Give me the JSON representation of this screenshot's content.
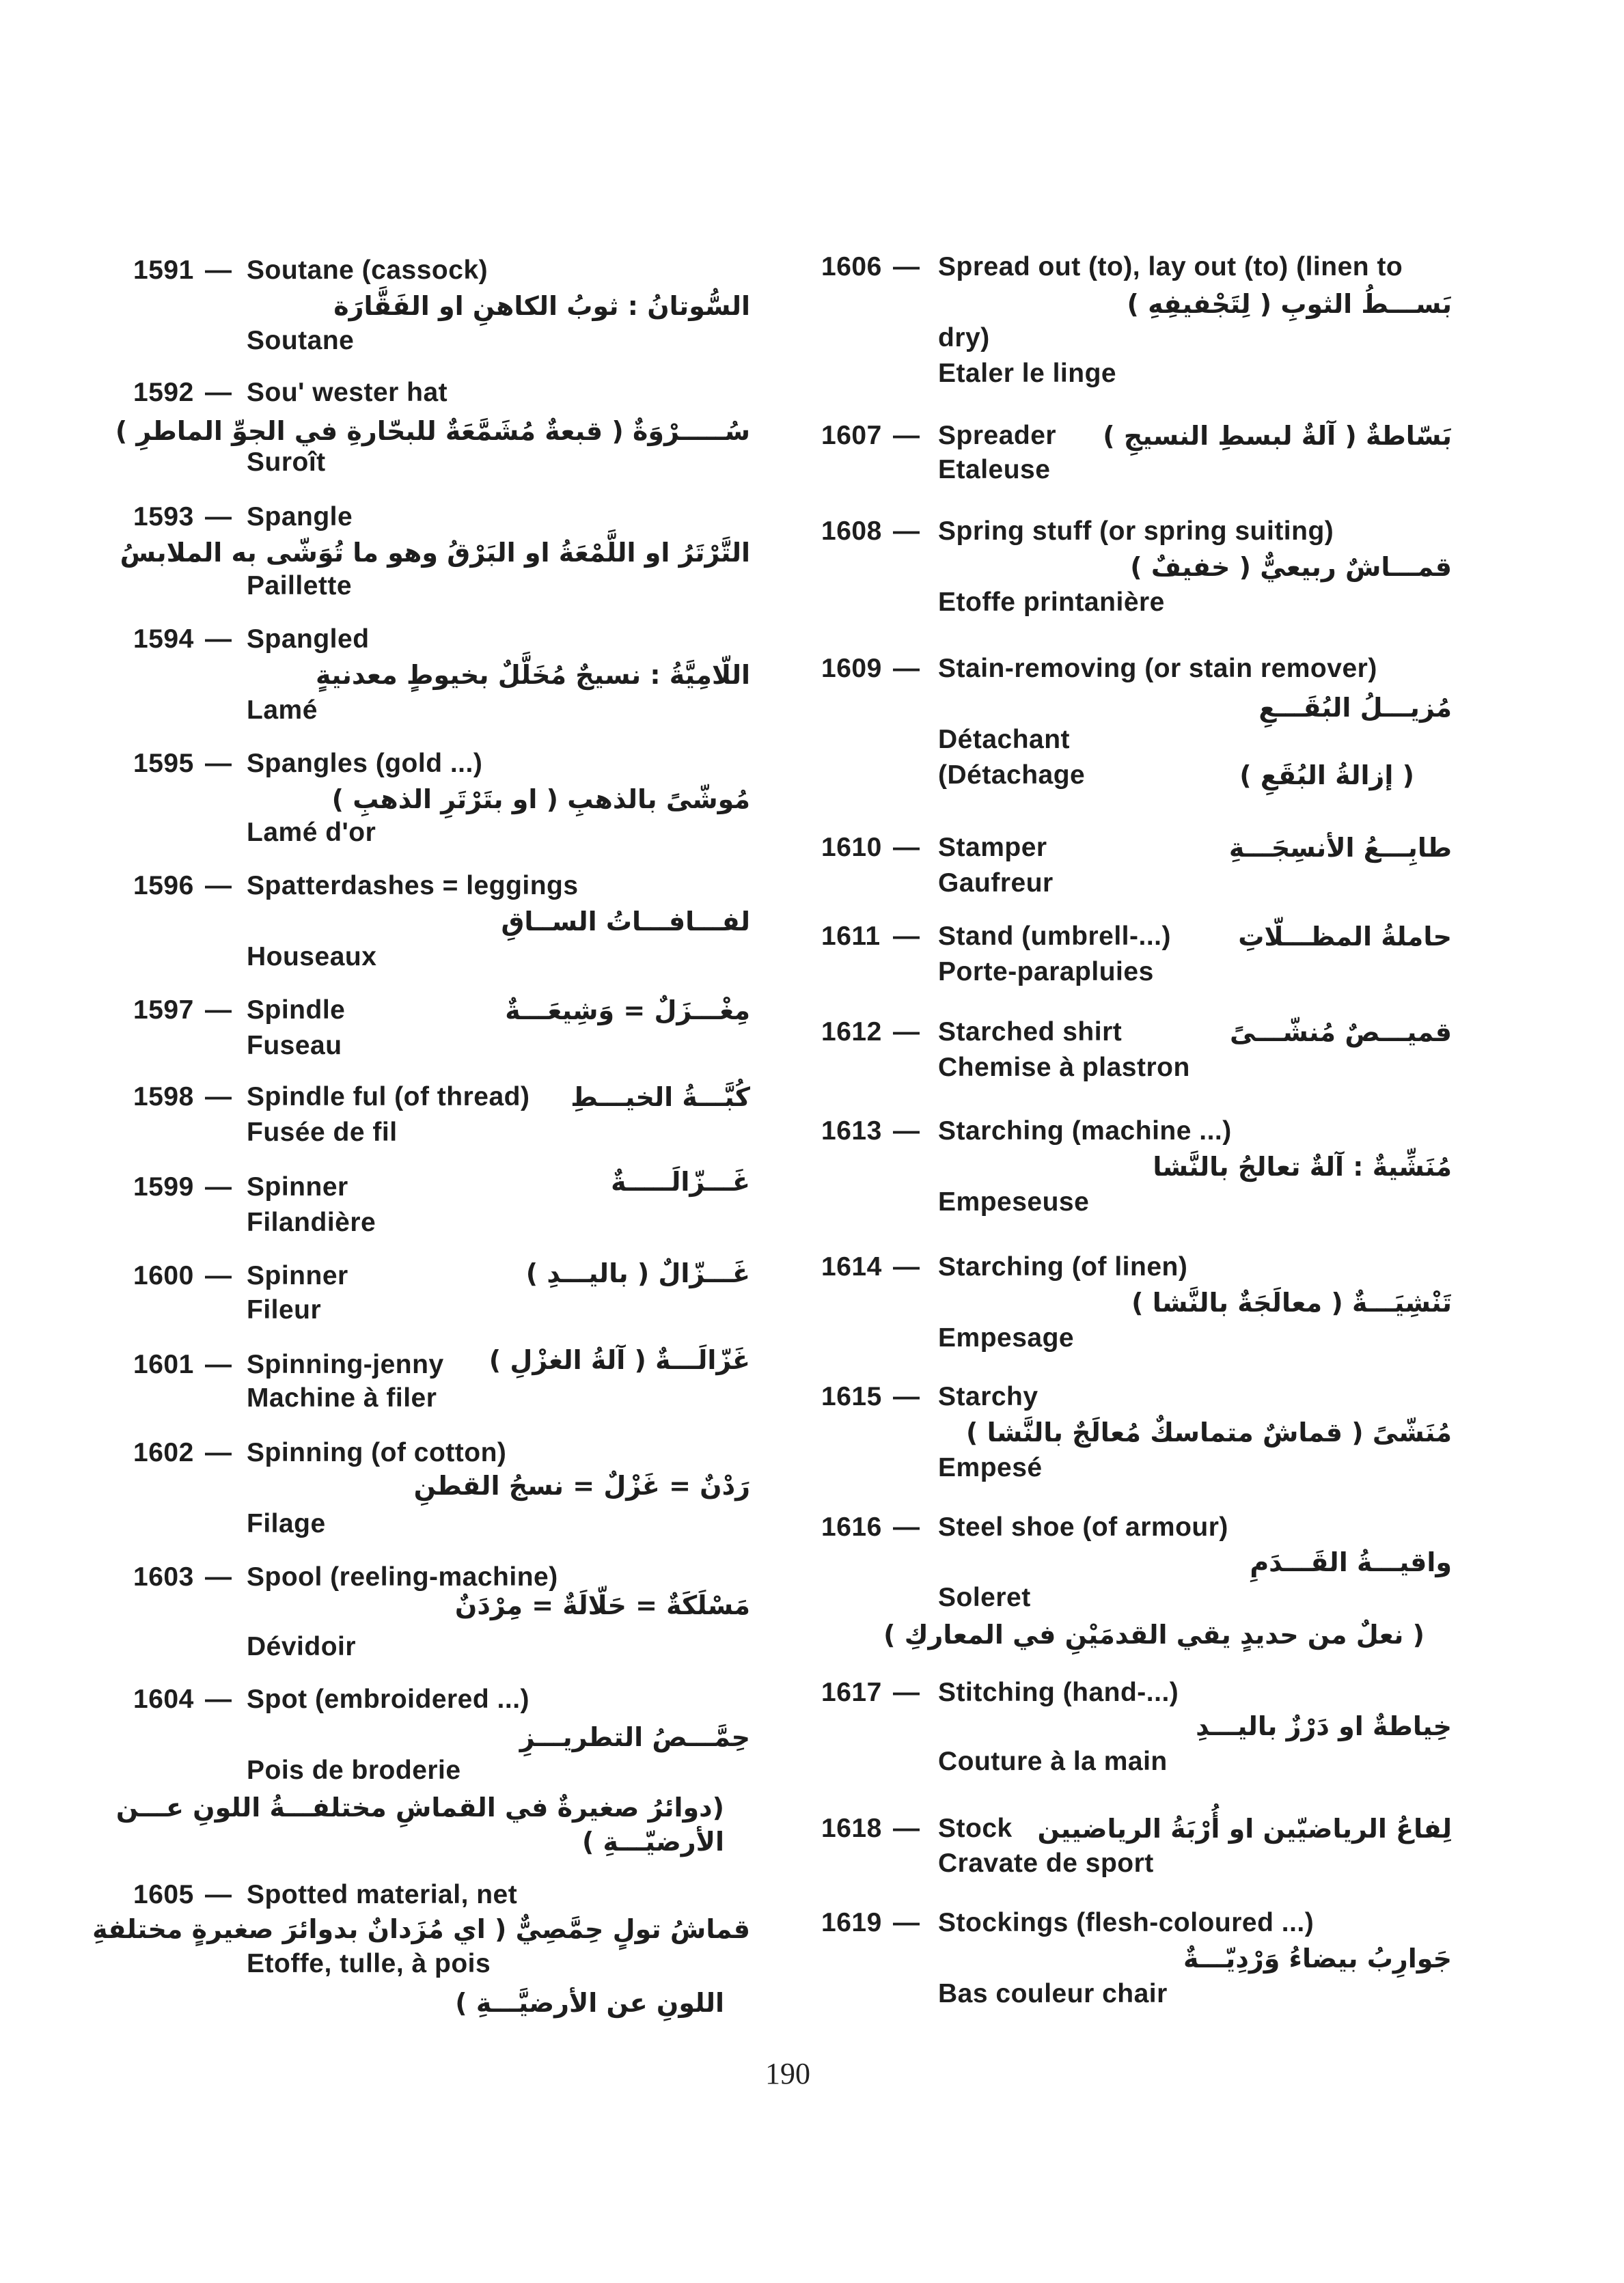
{
  "page_number": "190",
  "separator": "—",
  "left_column": [
    {
      "number": "1591",
      "headword": "Soutane (cassock)",
      "arabic": "السُّوتانُ : ثوبُ الكاهنِ او الفَقَّارَة",
      "french": "Soutane"
    },
    {
      "number": "1592",
      "headword": "Sou' wester hat",
      "arabic": "سُـــــرْوَةٌ ( قبعةٌ مُشَمَّعَةٌ للبحّارةِ في الجوِّ الماطرِ )",
      "french": "Suroît"
    },
    {
      "number": "1593",
      "headword": "Spangle",
      "arabic": "التَّرْتَرُ او اللَّمْعَةُ او البَرْقُ وهو ما تُوَشّى به الملابسُ",
      "french": "Paillette"
    },
    {
      "number": "1594",
      "headword": "Spangled",
      "arabic": "اللّامِيَّةُ : نسيجٌ مُخَلَّلٌ بخيوطٍ معدنيةٍ",
      "french": "Lamé"
    },
    {
      "number": "1595",
      "headword": "Spangles (gold ...)",
      "arabic": "مُوشّىً بالذهبِ ( او بتَرْتَرِ الذهبِ )",
      "french": "Lamé d'or"
    },
    {
      "number": "1596",
      "headword": "Spatterdashes = leggings",
      "arabic": "لفـــافـــاتُ الســاقِ",
      "french": "Houseaux"
    },
    {
      "number": "1597",
      "headword": "Spindle",
      "arabic": "مِغْـــزَلٌ = وَشِيعَـــةٌ",
      "french": "Fuseau"
    },
    {
      "number": "1598",
      "headword": "Spindle ful (of thread)",
      "arabic": "كُبَّـــةُ الخيـــطِ",
      "french": "Fusée de fil"
    },
    {
      "number": "1599",
      "headword": "Spinner",
      "arabic": "غَـــزّالَـــــةٌ",
      "french": "Filandière"
    },
    {
      "number": "1600",
      "headword": "Spinner",
      "arabic": "غَـــزّالٌ ( باليـــدِ )",
      "french": "Fileur"
    },
    {
      "number": "1601",
      "headword": "Spinning-jenny",
      "arabic": "غَزّالَـــةٌ ( آلةُ الغزْلِ )",
      "french": "Machine à filer"
    },
    {
      "number": "1602",
      "headword": "Spinning (of cotton)",
      "arabic": "رَدْنٌ = غَزْلٌ = نسجُ القطنِ",
      "french": "Filage"
    },
    {
      "number": "1603",
      "headword": "Spool (reeling-machine)",
      "arabic": "مَسْلَكَةٌ = حَلّالَةٌ = مِرْدَنٌ",
      "french": "Dévidoir"
    },
    {
      "number": "1604",
      "headword": "Spot (embroidered ...)",
      "arabic": "حِمَّـــصُ التطريـــزِ",
      "french": "Pois de broderie",
      "note_1": "(دوائرُ صغيرةٌ في القماشِ مختلفـــةُ اللونِ عـــن",
      "note_2": "الأرضيّـــةِ )"
    },
    {
      "number": "1605",
      "headword": "Spotted material, net",
      "arabic": "قماشُ تولٍ حِمَّصِيٌّ ( اي مُزَدانٌ بدوائرَ صغيرةٍ مختلفةِ",
      "french": "Etoffe, tulle, à pois",
      "note_1": "اللونِ عن الأرضيَّـــةِ )"
    }
  ],
  "right_column": [
    {
      "number": "1606",
      "headword": "Spread out (to), lay out (to) (linen to",
      "headword_cont": "dry)",
      "arabic": "بَســـطُ الثوبِ ( لِتَجْفيفِهِ )",
      "french": "Etaler le linge"
    },
    {
      "number": "1607",
      "headword": "Spreader",
      "arabic": "بَسّاطةٌ ( آلةٌ لبسطِ النسيجِ )",
      "french": "Etaleuse"
    },
    {
      "number": "1608",
      "headword": "Spring stuff (or spring suiting)",
      "arabic": "قمـــاشٌ ربيعيٌّ ( خفيفٌ )",
      "french": "Etoffe printanière"
    },
    {
      "number": "1609",
      "headword": "Stain-removing (or stain remover)",
      "arabic": "مُزيـــلُ البُقَـــعِ",
      "french": "Détachant",
      "french_2": "(Détachage",
      "arabic_2": "( إزالةُ البُقَعِ )"
    },
    {
      "number": "1610",
      "headword": "Stamper",
      "arabic": "طابِـــعُ الأنسِجَـــةِ",
      "french": "Gaufreur"
    },
    {
      "number": "1611",
      "headword": "Stand (umbrell-...)",
      "arabic": "حاملةُ المظـــلّاتِ",
      "french": "Porte-parapluies"
    },
    {
      "number": "1612",
      "headword": "Starched shirt",
      "arabic": "قميـــصٌ مُنشّـــىً",
      "french": "Chemise à plastron"
    },
    {
      "number": "1613",
      "headword": "Starching (machine ...)",
      "arabic": "مُنَشِّيةٌ : آلةٌ تعالجُ بالنَّشا",
      "french": "Empeseuse"
    },
    {
      "number": "1614",
      "headword": "Starching (of linen)",
      "arabic": "تَنْشِيَـــةٌ ( معالَجَةٌ بالنَّشا )",
      "french": "Empesage"
    },
    {
      "number": "1615",
      "headword": "Starchy",
      "arabic": "مُنَشّىً ( قماشٌ متماسكٌ مُعالَجٌ بالنَّشا )",
      "french": "Empesé"
    },
    {
      "number": "1616",
      "headword": "Steel shoe (of armour)",
      "arabic": "واقيـــةُ القَـــدَمِ",
      "french": "Soleret",
      "arabic_2": "( نعلٌ من حديدٍ يقي القدمَيْنِ في المعاركِ )"
    },
    {
      "number": "1617",
      "headword": "Stitching (hand-...)",
      "arabic": "خِياطةٌ او دَرْزٌ باليـــدِ",
      "french": "Couture à la main"
    },
    {
      "number": "1618",
      "headword": "Stock",
      "arabic": "لِفاعُ الرياضيّين او أُرْبَةُ الرياضيين",
      "french": "Cravate de sport"
    },
    {
      "number": "1619",
      "headword": "Stockings (flesh-coloured ...)",
      "arabic": "جَوارِبُ بيضاءُ وَرْدِيّـــةٌ",
      "french": "Bas couleur chair"
    }
  ]
}
